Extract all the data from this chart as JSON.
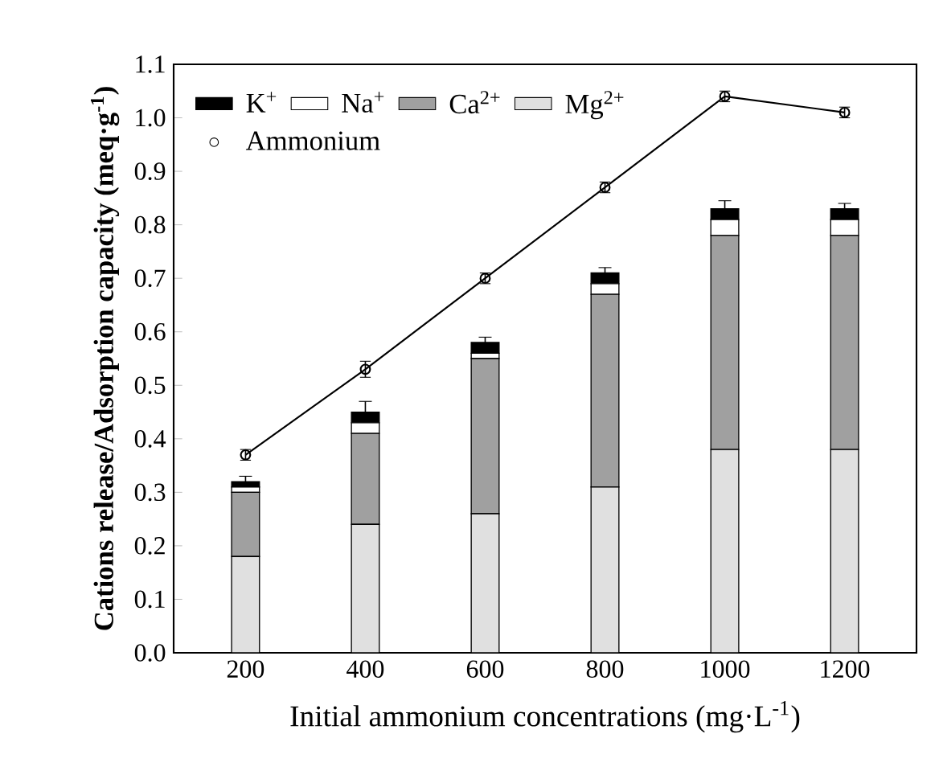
{
  "chart_data": {
    "type": "bar",
    "stacked": true,
    "xlabel": "Initial ammonium concentrations (mg·L$^{-1}$)",
    "ylabel": "Cations release/Adsorption capacity (meq·g$^{-1}$)",
    "categories": [
      "200",
      "400",
      "600",
      "800",
      "1000",
      "1200"
    ],
    "series": [
      {
        "name": "Mg$^{2+}$",
        "color": "#e0e0e0",
        "values": [
          0.18,
          0.24,
          0.26,
          0.31,
          0.38,
          0.38
        ]
      },
      {
        "name": "Ca$^{2+}$",
        "color": "#a0a0a0",
        "values": [
          0.12,
          0.17,
          0.29,
          0.36,
          0.4,
          0.4
        ]
      },
      {
        "name": "Na$^{+}$",
        "color": "#ffffff",
        "values": [
          0.01,
          0.02,
          0.01,
          0.02,
          0.03,
          0.03
        ]
      },
      {
        "name": "K$^{+}$",
        "color": "#000000",
        "values": [
          0.01,
          0.02,
          0.02,
          0.02,
          0.02,
          0.02
        ],
        "errors": [
          0.01,
          0.02,
          0.01,
          0.01,
          0.015,
          0.01
        ]
      },
      {
        "name": "Ammonium",
        "type": "line",
        "marker": "circle",
        "color": "#000000",
        "values": [
          0.37,
          0.53,
          0.7,
          0.87,
          1.04,
          1.01
        ],
        "errors": [
          0.01,
          0.015,
          0.01,
          0.01,
          0.01,
          0.01
        ]
      }
    ],
    "ylim": [
      0,
      1.1
    ],
    "yticks": [
      {
        "value": 0,
        "label": "0.0"
      },
      {
        "value": 0.1,
        "label": "0.1"
      },
      {
        "value": 0.2,
        "label": "0.2"
      },
      {
        "value": 0.3,
        "label": "0.3"
      },
      {
        "value": 0.4,
        "label": "0.4"
      },
      {
        "value": 0.5,
        "label": "0.5"
      },
      {
        "value": 0.6,
        "label": "0.6"
      },
      {
        "value": 0.7,
        "label": "0.7"
      },
      {
        "value": 0.8,
        "label": "0.8"
      },
      {
        "value": 0.9,
        "label": "0.9"
      },
      {
        "value": 1.0,
        "label": "1.0"
      },
      {
        "value": 1.1,
        "label": "1.1"
      }
    ],
    "legend": "top left"
  }
}
